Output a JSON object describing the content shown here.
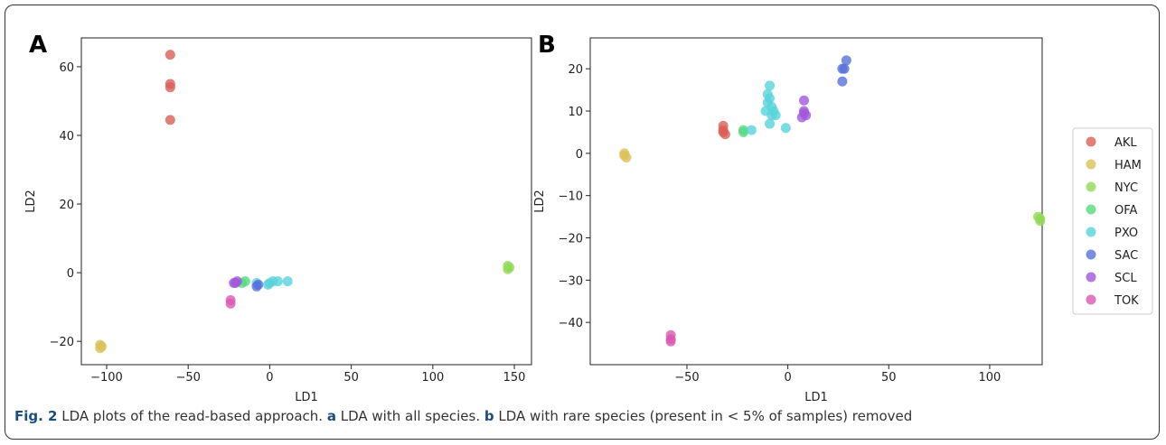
{
  "chart_data": [
    {
      "type": "scatter",
      "panel_label": "A",
      "xlabel": "LD1",
      "ylabel": "LD2",
      "xlim": [
        -115.5,
        160.5
      ],
      "ylim": [
        -26.8,
        68.4
      ],
      "xticks": [
        {
          "value": -100,
          "label": "−100"
        },
        {
          "value": -50,
          "label": "−50"
        },
        0,
        50,
        100,
        150
      ],
      "yticks": [
        {
          "value": -20,
          "label": "−20"
        },
        0,
        20,
        40,
        60
      ],
      "series": [
        {
          "name": "AKL",
          "color": "#db5f57",
          "x": [
            -61,
            -61,
            -61,
            -61
          ],
          "values": [
            63.5,
            55,
            54,
            44.5
          ]
        },
        {
          "name": "HAM",
          "color": "#dbc257",
          "x": [
            -104,
            -104,
            -103
          ],
          "values": [
            -21,
            -22,
            -21.5
          ]
        },
        {
          "name": "NYC",
          "color": "#91db57",
          "x": [
            146,
            147,
            146
          ],
          "values": [
            2,
            1.5,
            1
          ]
        },
        {
          "name": "OFA",
          "color": "#57db80",
          "x": [
            -17,
            -15
          ],
          "values": [
            -3,
            -2.5
          ]
        },
        {
          "name": "PXO",
          "color": "#57d3db",
          "x": [
            -8,
            0,
            2,
            5,
            11,
            -1
          ],
          "values": [
            -3,
            -3,
            -2.5,
            -2.5,
            -2.5,
            -3.5
          ]
        },
        {
          "name": "SAC",
          "color": "#5770db",
          "x": [
            -8,
            -7
          ],
          "values": [
            -4,
            -3.5
          ]
        },
        {
          "name": "SCL",
          "color": "#a157db",
          "x": [
            -21,
            -20,
            -22
          ],
          "values": [
            -3,
            -2.5,
            -3
          ]
        },
        {
          "name": "TOK",
          "color": "#db57b2",
          "x": [
            -24,
            -24
          ],
          "values": [
            -8,
            -9
          ]
        }
      ]
    },
    {
      "type": "scatter",
      "panel_label": "B",
      "xlabel": "LD1",
      "ylabel": "LD2",
      "xlim": [
        -97.9,
        126
      ],
      "ylim": [
        -50,
        27.3
      ],
      "legend": "outside-right",
      "xticks": [
        {
          "value": -50,
          "label": "−50"
        },
        0,
        50,
        100
      ],
      "yticks": [
        {
          "value": -40,
          "label": "−40"
        },
        {
          "value": -30,
          "label": "−30"
        },
        {
          "value": -20,
          "label": "−20"
        },
        {
          "value": -10,
          "label": "−10"
        },
        0,
        10,
        20
      ],
      "series": [
        {
          "name": "AKL",
          "color": "#db5f57",
          "x": [
            -32,
            -32,
            -31,
            -32
          ],
          "values": [
            6.5,
            5.5,
            4.5,
            5
          ]
        },
        {
          "name": "HAM",
          "color": "#dbc257",
          "x": [
            -81,
            -80,
            -81
          ],
          "values": [
            -0.5,
            -1,
            0
          ]
        },
        {
          "name": "NYC",
          "color": "#91db57",
          "x": [
            124,
            125,
            125
          ],
          "values": [
            -15,
            -16,
            -15.5
          ]
        },
        {
          "name": "OFA",
          "color": "#57db80",
          "x": [
            -22,
            -22
          ],
          "values": [
            5.5,
            5
          ]
        },
        {
          "name": "PXO",
          "color": "#57d3db",
          "x": [
            -9,
            -10,
            -9,
            -10,
            -8,
            -7,
            -8,
            -6,
            -9,
            -18,
            -1,
            -11
          ],
          "values": [
            16,
            14,
            13,
            12,
            11,
            10,
            9,
            9,
            7,
            5.5,
            6,
            10
          ]
        },
        {
          "name": "SAC",
          "color": "#5770db",
          "x": [
            28,
            29,
            27,
            27
          ],
          "values": [
            20,
            22,
            17,
            20
          ]
        },
        {
          "name": "SCL",
          "color": "#a157db",
          "x": [
            8,
            8,
            9,
            7,
            8
          ],
          "values": [
            12.5,
            10,
            9,
            8.5,
            9.5
          ]
        },
        {
          "name": "TOK",
          "color": "#db57b2",
          "x": [
            -58,
            -58,
            -58
          ],
          "values": [
            -43,
            -44.5,
            -44
          ]
        }
      ]
    }
  ],
  "caption": [
    {
      "text": "Fig. 2",
      "bold": true
    },
    {
      "text": " LDA plots of the read-based approach. "
    },
    {
      "text": "a",
      "bold": true
    },
    {
      "text": " LDA with all species. "
    },
    {
      "text": "b",
      "bold": true
    },
    {
      "text": " LDA with rare species (present in < 5% of samples) removed"
    }
  ]
}
